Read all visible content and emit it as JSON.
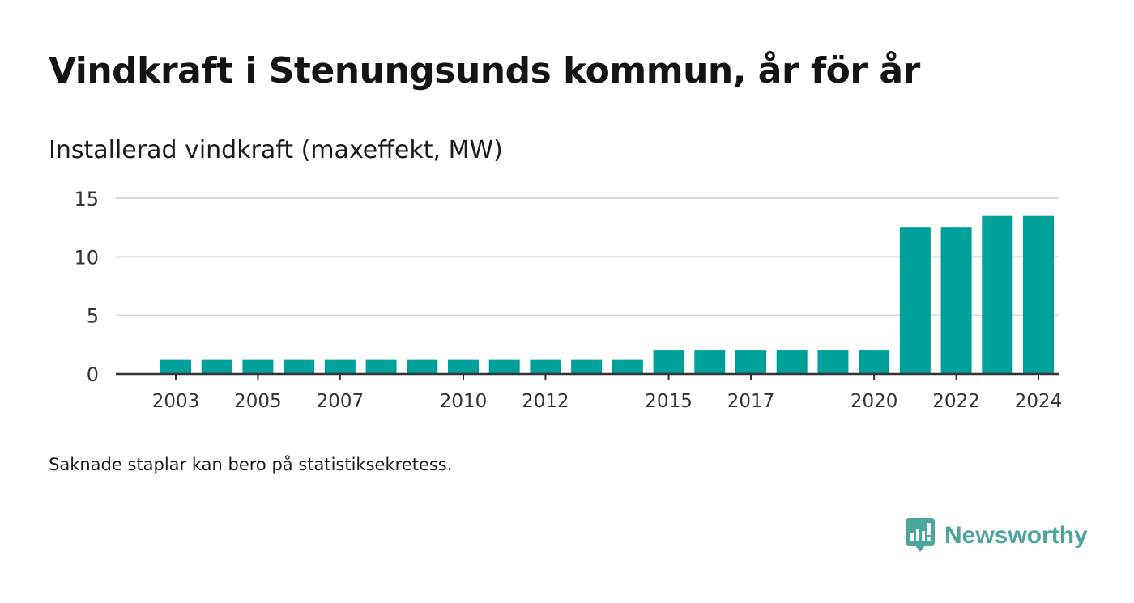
{
  "title": "Vindkraft i Stenungsunds kommun, år för år",
  "footnote": "Saknade staplar kan bero på statistiksekretess.",
  "brand": {
    "name": "Newsworthy",
    "color": "#4aa59c",
    "icon": "newsworthy-logo-icon"
  },
  "chart_data": {
    "type": "bar",
    "title": "",
    "ylabel": "Installerad vindkraft (maxeffekt, MW)",
    "xlabel": "",
    "ylim": [
      0,
      15
    ],
    "yticks": [
      0,
      5,
      10,
      15
    ],
    "grid": true,
    "bar_color": "#00a19a",
    "categories": [
      "2003",
      "2004",
      "2005",
      "2006",
      "2007",
      "2008",
      "2009",
      "2010",
      "2011",
      "2012",
      "2013",
      "2014",
      "2015",
      "2016",
      "2017",
      "2018",
      "2019",
      "2020",
      "2021",
      "2022",
      "2023",
      "2024"
    ],
    "values": [
      1.2,
      1.2,
      1.2,
      1.2,
      1.2,
      1.2,
      1.2,
      1.2,
      1.2,
      1.2,
      1.2,
      1.2,
      2,
      2,
      2,
      2,
      2,
      2,
      12.5,
      12.5,
      13.5,
      13.5
    ],
    "xtick_labels": [
      "2003",
      "2005",
      "2007",
      "2010",
      "2012",
      "2015",
      "2017",
      "2020",
      "2022",
      "2024"
    ]
  }
}
